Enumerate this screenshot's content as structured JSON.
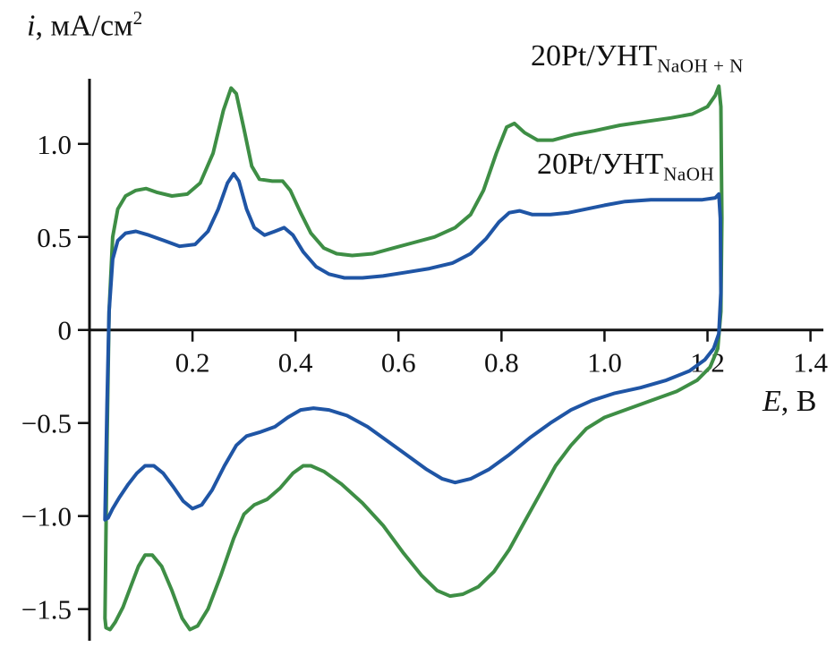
{
  "figure": {
    "background": "#ffffff",
    "axis_color": "#111111"
  },
  "chart_data": {
    "type": "line",
    "subtype": "cyclic-voltammogram",
    "title": "",
    "xlabel_var": "E",
    "xlabel_rest": ", В",
    "ylabel_var": "i",
    "ylabel_rest": ", мА/см",
    "ylabel_sup": "2",
    "xlim": [
      0,
      1.425
    ],
    "ylim": [
      -1.67,
      1.35
    ],
    "grid": false,
    "axis_color": "#111111",
    "x_ticks": [
      {
        "v": 0.2,
        "label": "0.2"
      },
      {
        "v": 0.4,
        "label": "0.4"
      },
      {
        "v": 0.6,
        "label": "0.6"
      },
      {
        "v": 0.8,
        "label": "0.8"
      },
      {
        "v": 1.0,
        "label": "1.0"
      },
      {
        "v": 1.2,
        "label": "1.2"
      },
      {
        "v": 1.4,
        "label": "1.4"
      }
    ],
    "y_ticks": [
      {
        "v": 1.0,
        "label": "1.0"
      },
      {
        "v": 0.5,
        "label": "0.5"
      },
      {
        "v": 0.0,
        "label": "0"
      },
      {
        "v": -0.5,
        "label": "−0.5"
      },
      {
        "v": -1.0,
        "label": "−1.0"
      },
      {
        "v": -1.5,
        "label": "−1.5"
      }
    ],
    "series": [
      {
        "name": "20Pt/УНТ_NaOH+N",
        "name_main": "20Pt/УНТ",
        "name_sub": "NaOH + N",
        "color": "#3e8e45",
        "points": [
          [
            0.03,
            -1.55
          ],
          [
            0.034,
            -0.6
          ],
          [
            0.038,
            0.1
          ],
          [
            0.045,
            0.5
          ],
          [
            0.055,
            0.65
          ],
          [
            0.07,
            0.72
          ],
          [
            0.09,
            0.75
          ],
          [
            0.11,
            0.76
          ],
          [
            0.13,
            0.74
          ],
          [
            0.16,
            0.72
          ],
          [
            0.19,
            0.73
          ],
          [
            0.215,
            0.79
          ],
          [
            0.24,
            0.95
          ],
          [
            0.26,
            1.18
          ],
          [
            0.275,
            1.3
          ],
          [
            0.285,
            1.27
          ],
          [
            0.3,
            1.08
          ],
          [
            0.315,
            0.88
          ],
          [
            0.33,
            0.81
          ],
          [
            0.355,
            0.8
          ],
          [
            0.375,
            0.8
          ],
          [
            0.39,
            0.75
          ],
          [
            0.41,
            0.63
          ],
          [
            0.43,
            0.52
          ],
          [
            0.455,
            0.44
          ],
          [
            0.48,
            0.41
          ],
          [
            0.51,
            0.4
          ],
          [
            0.55,
            0.41
          ],
          [
            0.59,
            0.44
          ],
          [
            0.63,
            0.47
          ],
          [
            0.67,
            0.5
          ],
          [
            0.71,
            0.55
          ],
          [
            0.74,
            0.62
          ],
          [
            0.765,
            0.75
          ],
          [
            0.79,
            0.95
          ],
          [
            0.81,
            1.09
          ],
          [
            0.825,
            1.11
          ],
          [
            0.845,
            1.06
          ],
          [
            0.87,
            1.02
          ],
          [
            0.9,
            1.02
          ],
          [
            0.94,
            1.05
          ],
          [
            0.98,
            1.07
          ],
          [
            1.03,
            1.1
          ],
          [
            1.08,
            1.12
          ],
          [
            1.13,
            1.14
          ],
          [
            1.17,
            1.16
          ],
          [
            1.2,
            1.2
          ],
          [
            1.215,
            1.26
          ],
          [
            1.222,
            1.31
          ],
          [
            1.226,
            1.2
          ],
          [
            1.228,
            0.6
          ],
          [
            1.226,
            0.1
          ],
          [
            1.22,
            -0.1
          ],
          [
            1.205,
            -0.2
          ],
          [
            1.18,
            -0.27
          ],
          [
            1.14,
            -0.33
          ],
          [
            1.09,
            -0.38
          ],
          [
            1.04,
            -0.43
          ],
          [
            1.0,
            -0.47
          ],
          [
            0.965,
            -0.53
          ],
          [
            0.935,
            -0.62
          ],
          [
            0.905,
            -0.73
          ],
          [
            0.875,
            -0.88
          ],
          [
            0.845,
            -1.03
          ],
          [
            0.815,
            -1.18
          ],
          [
            0.785,
            -1.3
          ],
          [
            0.755,
            -1.38
          ],
          [
            0.725,
            -1.42
          ],
          [
            0.7,
            -1.43
          ],
          [
            0.675,
            -1.4
          ],
          [
            0.645,
            -1.32
          ],
          [
            0.61,
            -1.2
          ],
          [
            0.57,
            -1.05
          ],
          [
            0.53,
            -0.93
          ],
          [
            0.49,
            -0.83
          ],
          [
            0.455,
            -0.76
          ],
          [
            0.43,
            -0.73
          ],
          [
            0.415,
            -0.73
          ],
          [
            0.395,
            -0.77
          ],
          [
            0.37,
            -0.85
          ],
          [
            0.345,
            -0.91
          ],
          [
            0.32,
            -0.94
          ],
          [
            0.3,
            -0.99
          ],
          [
            0.28,
            -1.12
          ],
          [
            0.255,
            -1.32
          ],
          [
            0.23,
            -1.5
          ],
          [
            0.21,
            -1.59
          ],
          [
            0.195,
            -1.61
          ],
          [
            0.18,
            -1.55
          ],
          [
            0.16,
            -1.4
          ],
          [
            0.14,
            -1.27
          ],
          [
            0.122,
            -1.21
          ],
          [
            0.108,
            -1.21
          ],
          [
            0.095,
            -1.27
          ],
          [
            0.08,
            -1.38
          ],
          [
            0.065,
            -1.49
          ],
          [
            0.05,
            -1.57
          ],
          [
            0.04,
            -1.61
          ],
          [
            0.032,
            -1.6
          ]
        ]
      },
      {
        "name": "20Pt/УНТ_NaOH",
        "name_main": "20Pt/УНТ",
        "name_sub": "NaOH",
        "color": "#1f55a5",
        "points": [
          [
            0.03,
            -1.02
          ],
          [
            0.034,
            -0.4
          ],
          [
            0.038,
            0.1
          ],
          [
            0.045,
            0.38
          ],
          [
            0.055,
            0.48
          ],
          [
            0.07,
            0.52
          ],
          [
            0.09,
            0.53
          ],
          [
            0.115,
            0.51
          ],
          [
            0.145,
            0.48
          ],
          [
            0.175,
            0.45
          ],
          [
            0.205,
            0.46
          ],
          [
            0.23,
            0.53
          ],
          [
            0.25,
            0.65
          ],
          [
            0.268,
            0.79
          ],
          [
            0.28,
            0.84
          ],
          [
            0.29,
            0.8
          ],
          [
            0.305,
            0.65
          ],
          [
            0.32,
            0.55
          ],
          [
            0.34,
            0.51
          ],
          [
            0.36,
            0.53
          ],
          [
            0.378,
            0.55
          ],
          [
            0.395,
            0.51
          ],
          [
            0.415,
            0.42
          ],
          [
            0.44,
            0.34
          ],
          [
            0.465,
            0.3
          ],
          [
            0.495,
            0.28
          ],
          [
            0.53,
            0.28
          ],
          [
            0.57,
            0.29
          ],
          [
            0.615,
            0.31
          ],
          [
            0.66,
            0.33
          ],
          [
            0.705,
            0.36
          ],
          [
            0.74,
            0.41
          ],
          [
            0.77,
            0.49
          ],
          [
            0.795,
            0.58
          ],
          [
            0.815,
            0.63
          ],
          [
            0.835,
            0.64
          ],
          [
            0.86,
            0.62
          ],
          [
            0.895,
            0.62
          ],
          [
            0.93,
            0.63
          ],
          [
            0.965,
            0.65
          ],
          [
            1.0,
            0.67
          ],
          [
            1.04,
            0.69
          ],
          [
            1.09,
            0.7
          ],
          [
            1.14,
            0.7
          ],
          [
            1.19,
            0.7
          ],
          [
            1.215,
            0.71
          ],
          [
            1.222,
            0.73
          ],
          [
            1.225,
            0.6
          ],
          [
            1.226,
            0.2
          ],
          [
            1.222,
            -0.02
          ],
          [
            1.212,
            -0.1
          ],
          [
            1.195,
            -0.16
          ],
          [
            1.165,
            -0.22
          ],
          [
            1.12,
            -0.27
          ],
          [
            1.07,
            -0.31
          ],
          [
            1.02,
            -0.34
          ],
          [
            0.975,
            -0.38
          ],
          [
            0.935,
            -0.43
          ],
          [
            0.895,
            -0.5
          ],
          [
            0.855,
            -0.58
          ],
          [
            0.815,
            -0.67
          ],
          [
            0.775,
            -0.75
          ],
          [
            0.74,
            -0.8
          ],
          [
            0.71,
            -0.82
          ],
          [
            0.685,
            -0.8
          ],
          [
            0.655,
            -0.75
          ],
          [
            0.62,
            -0.68
          ],
          [
            0.58,
            -0.6
          ],
          [
            0.54,
            -0.52
          ],
          [
            0.5,
            -0.46
          ],
          [
            0.465,
            -0.43
          ],
          [
            0.435,
            -0.42
          ],
          [
            0.41,
            -0.43
          ],
          [
            0.385,
            -0.47
          ],
          [
            0.36,
            -0.52
          ],
          [
            0.33,
            -0.55
          ],
          [
            0.305,
            -0.57
          ],
          [
            0.285,
            -0.62
          ],
          [
            0.262,
            -0.73
          ],
          [
            0.238,
            -0.86
          ],
          [
            0.218,
            -0.94
          ],
          [
            0.2,
            -0.96
          ],
          [
            0.182,
            -0.92
          ],
          [
            0.162,
            -0.84
          ],
          [
            0.143,
            -0.77
          ],
          [
            0.125,
            -0.73
          ],
          [
            0.108,
            -0.73
          ],
          [
            0.092,
            -0.77
          ],
          [
            0.075,
            -0.83
          ],
          [
            0.058,
            -0.9
          ],
          [
            0.045,
            -0.96
          ],
          [
            0.036,
            -1.01
          ]
        ]
      }
    ],
    "legend_position": "annotations-top-right"
  }
}
